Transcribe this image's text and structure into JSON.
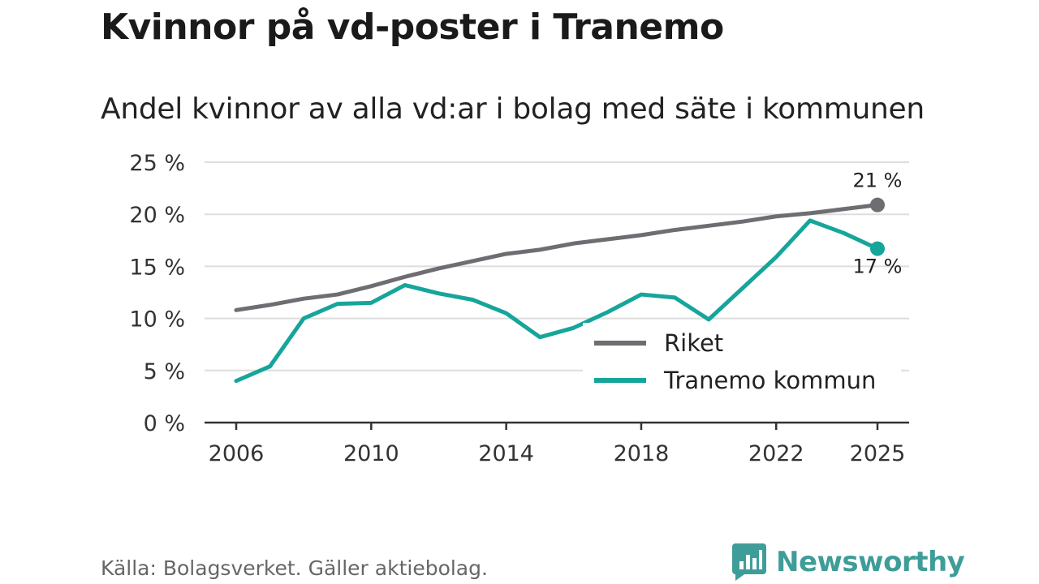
{
  "title": "Kvinnor på vd-poster i Tranemo",
  "subtitle": "Andel kvinnor av alla vd:ar i bolag med säte i kommunen",
  "source": "Källa: Bolagsverket. Gäller aktiebolag.",
  "brand": "Newsworthy",
  "colors": {
    "riket": "#6e6d72",
    "tranemo": "#16a59b",
    "grid": "#dddddd",
    "axis": "#333333",
    "brand": "#3f9d99"
  },
  "chart_data": {
    "type": "line",
    "x": [
      2006,
      2007,
      2008,
      2009,
      2010,
      2011,
      2012,
      2013,
      2014,
      2015,
      2016,
      2017,
      2018,
      2019,
      2020,
      2021,
      2022,
      2023,
      2024,
      2025
    ],
    "series": [
      {
        "name": "Riket",
        "values": [
          10.8,
          11.3,
          11.9,
          12.3,
          13.1,
          14.0,
          14.8,
          15.5,
          16.2,
          16.6,
          17.2,
          17.6,
          18.0,
          18.5,
          18.9,
          19.3,
          19.8,
          20.1,
          20.5,
          20.9
        ],
        "end_label": "21 %"
      },
      {
        "name": "Tranemo kommun",
        "values": [
          4.0,
          5.4,
          10.0,
          11.4,
          11.5,
          13.2,
          12.4,
          11.8,
          10.5,
          8.2,
          9.1,
          10.6,
          12.3,
          12.0,
          9.9,
          12.9,
          15.9,
          19.4,
          18.2,
          16.7
        ],
        "end_label": "17 %"
      }
    ],
    "title": "Kvinnor på vd-poster i Tranemo",
    "xlabel": "",
    "ylabel": "",
    "ylim": [
      0,
      25
    ],
    "yticks": [
      0,
      5,
      10,
      15,
      20,
      25
    ],
    "ytick_labels": [
      "0 %",
      "5 %",
      "10 %",
      "15 %",
      "20 %",
      "25 %"
    ],
    "xticks": [
      2006,
      2010,
      2014,
      2018,
      2022,
      2025
    ],
    "xtick_labels": [
      "2006",
      "2010",
      "2014",
      "2018",
      "2022",
      "2025"
    ],
    "grid": true,
    "legend_position": "bottom-right"
  }
}
